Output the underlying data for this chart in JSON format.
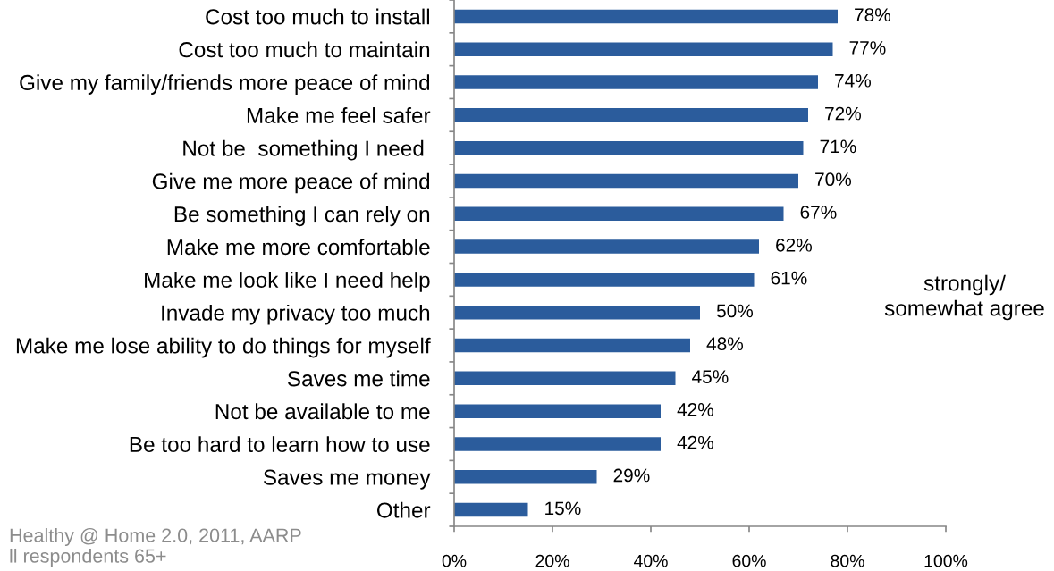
{
  "chart_data": {
    "type": "bar",
    "orientation": "horizontal",
    "categories": [
      "Cost too much to install",
      "Cost too much to maintain",
      "Give my family/friends more peace of mind",
      "Make me feel safer",
      "Not be  something I need ",
      "Give me more peace of mind",
      "Be something I can rely on",
      "Make me more comfortable",
      "Make me look like I need help",
      "Invade my privacy too much",
      "Make me lose ability to do things for myself",
      "Saves me time",
      "Not be available to me",
      "Be too hard to learn how to use",
      "Saves me money",
      "Other"
    ],
    "values": [
      78,
      77,
      74,
      72,
      71,
      70,
      67,
      62,
      61,
      50,
      48,
      45,
      42,
      42,
      29,
      15
    ],
    "value_labels": [
      "78%",
      "77%",
      "74%",
      "72%",
      "71%",
      "70%",
      "67%",
      "62%",
      "61%",
      "50%",
      "48%",
      "45%",
      "42%",
      "42%",
      "29%",
      "15%"
    ],
    "color": "#2b5c9c",
    "xlim": [
      0,
      100
    ],
    "xticks": [
      {
        "value": 0,
        "label": "0%"
      },
      {
        "value": 20,
        "label": "20%"
      },
      {
        "value": 40,
        "label": "40%"
      },
      {
        "value": 60,
        "label": "60%"
      },
      {
        "value": 80,
        "label": "80%"
      },
      {
        "value": 100,
        "label": "100%"
      }
    ],
    "annotations": [
      "strongly/\nsomewhat agree",
      "Healthy @ Home 2.0, 2011, AARP",
      "ll respondents 65+"
    ]
  }
}
